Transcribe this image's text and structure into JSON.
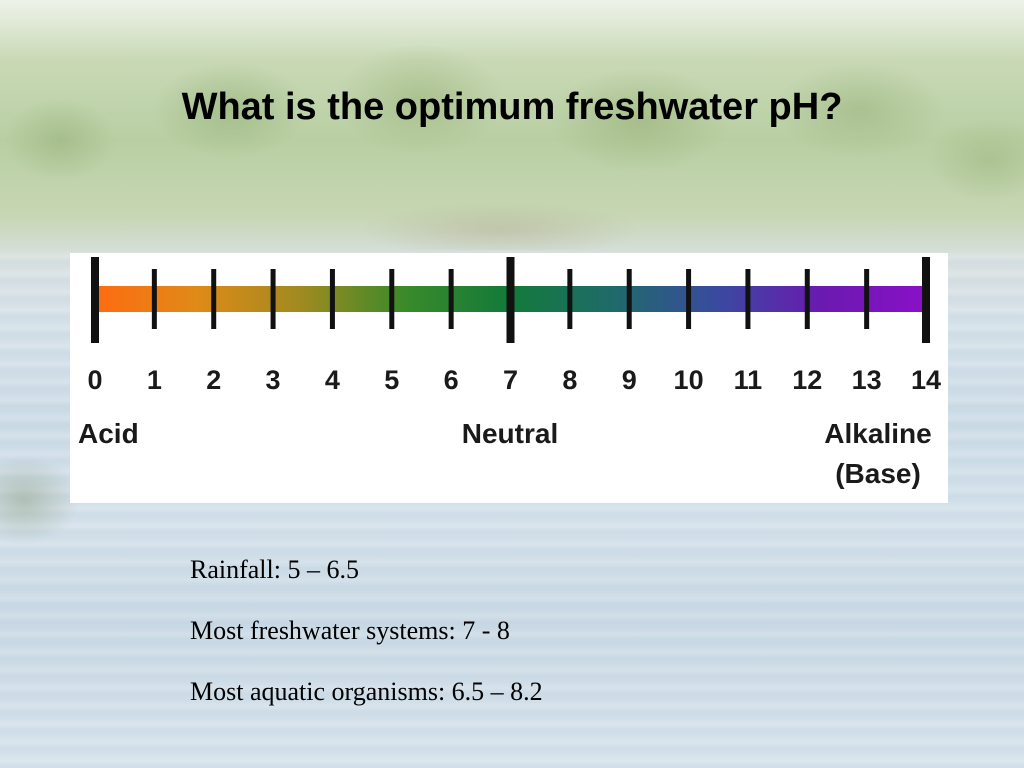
{
  "title": "What is the optimum freshwater pH?",
  "ph_scale": {
    "ticks": [
      "0",
      "1",
      "2",
      "3",
      "4",
      "5",
      "6",
      "7",
      "8",
      "9",
      "10",
      "11",
      "12",
      "13",
      "14"
    ],
    "labels": {
      "acid": "Acid",
      "neutral": "Neutral",
      "alkaline": "Alkaline",
      "base": "(Base)"
    },
    "gradient_colors": [
      "#ff6a10",
      "#e08a18",
      "#a08a20",
      "#3a8a2a",
      "#137a3a",
      "#1f6a6a",
      "#3a4aa0",
      "#6a1ab0",
      "#8a10c8"
    ]
  },
  "facts": [
    "Rainfall:  5 – 6.5",
    "Most freshwater systems:  7 - 8",
    "Most aquatic organisms: 6.5 – 8.2"
  ]
}
